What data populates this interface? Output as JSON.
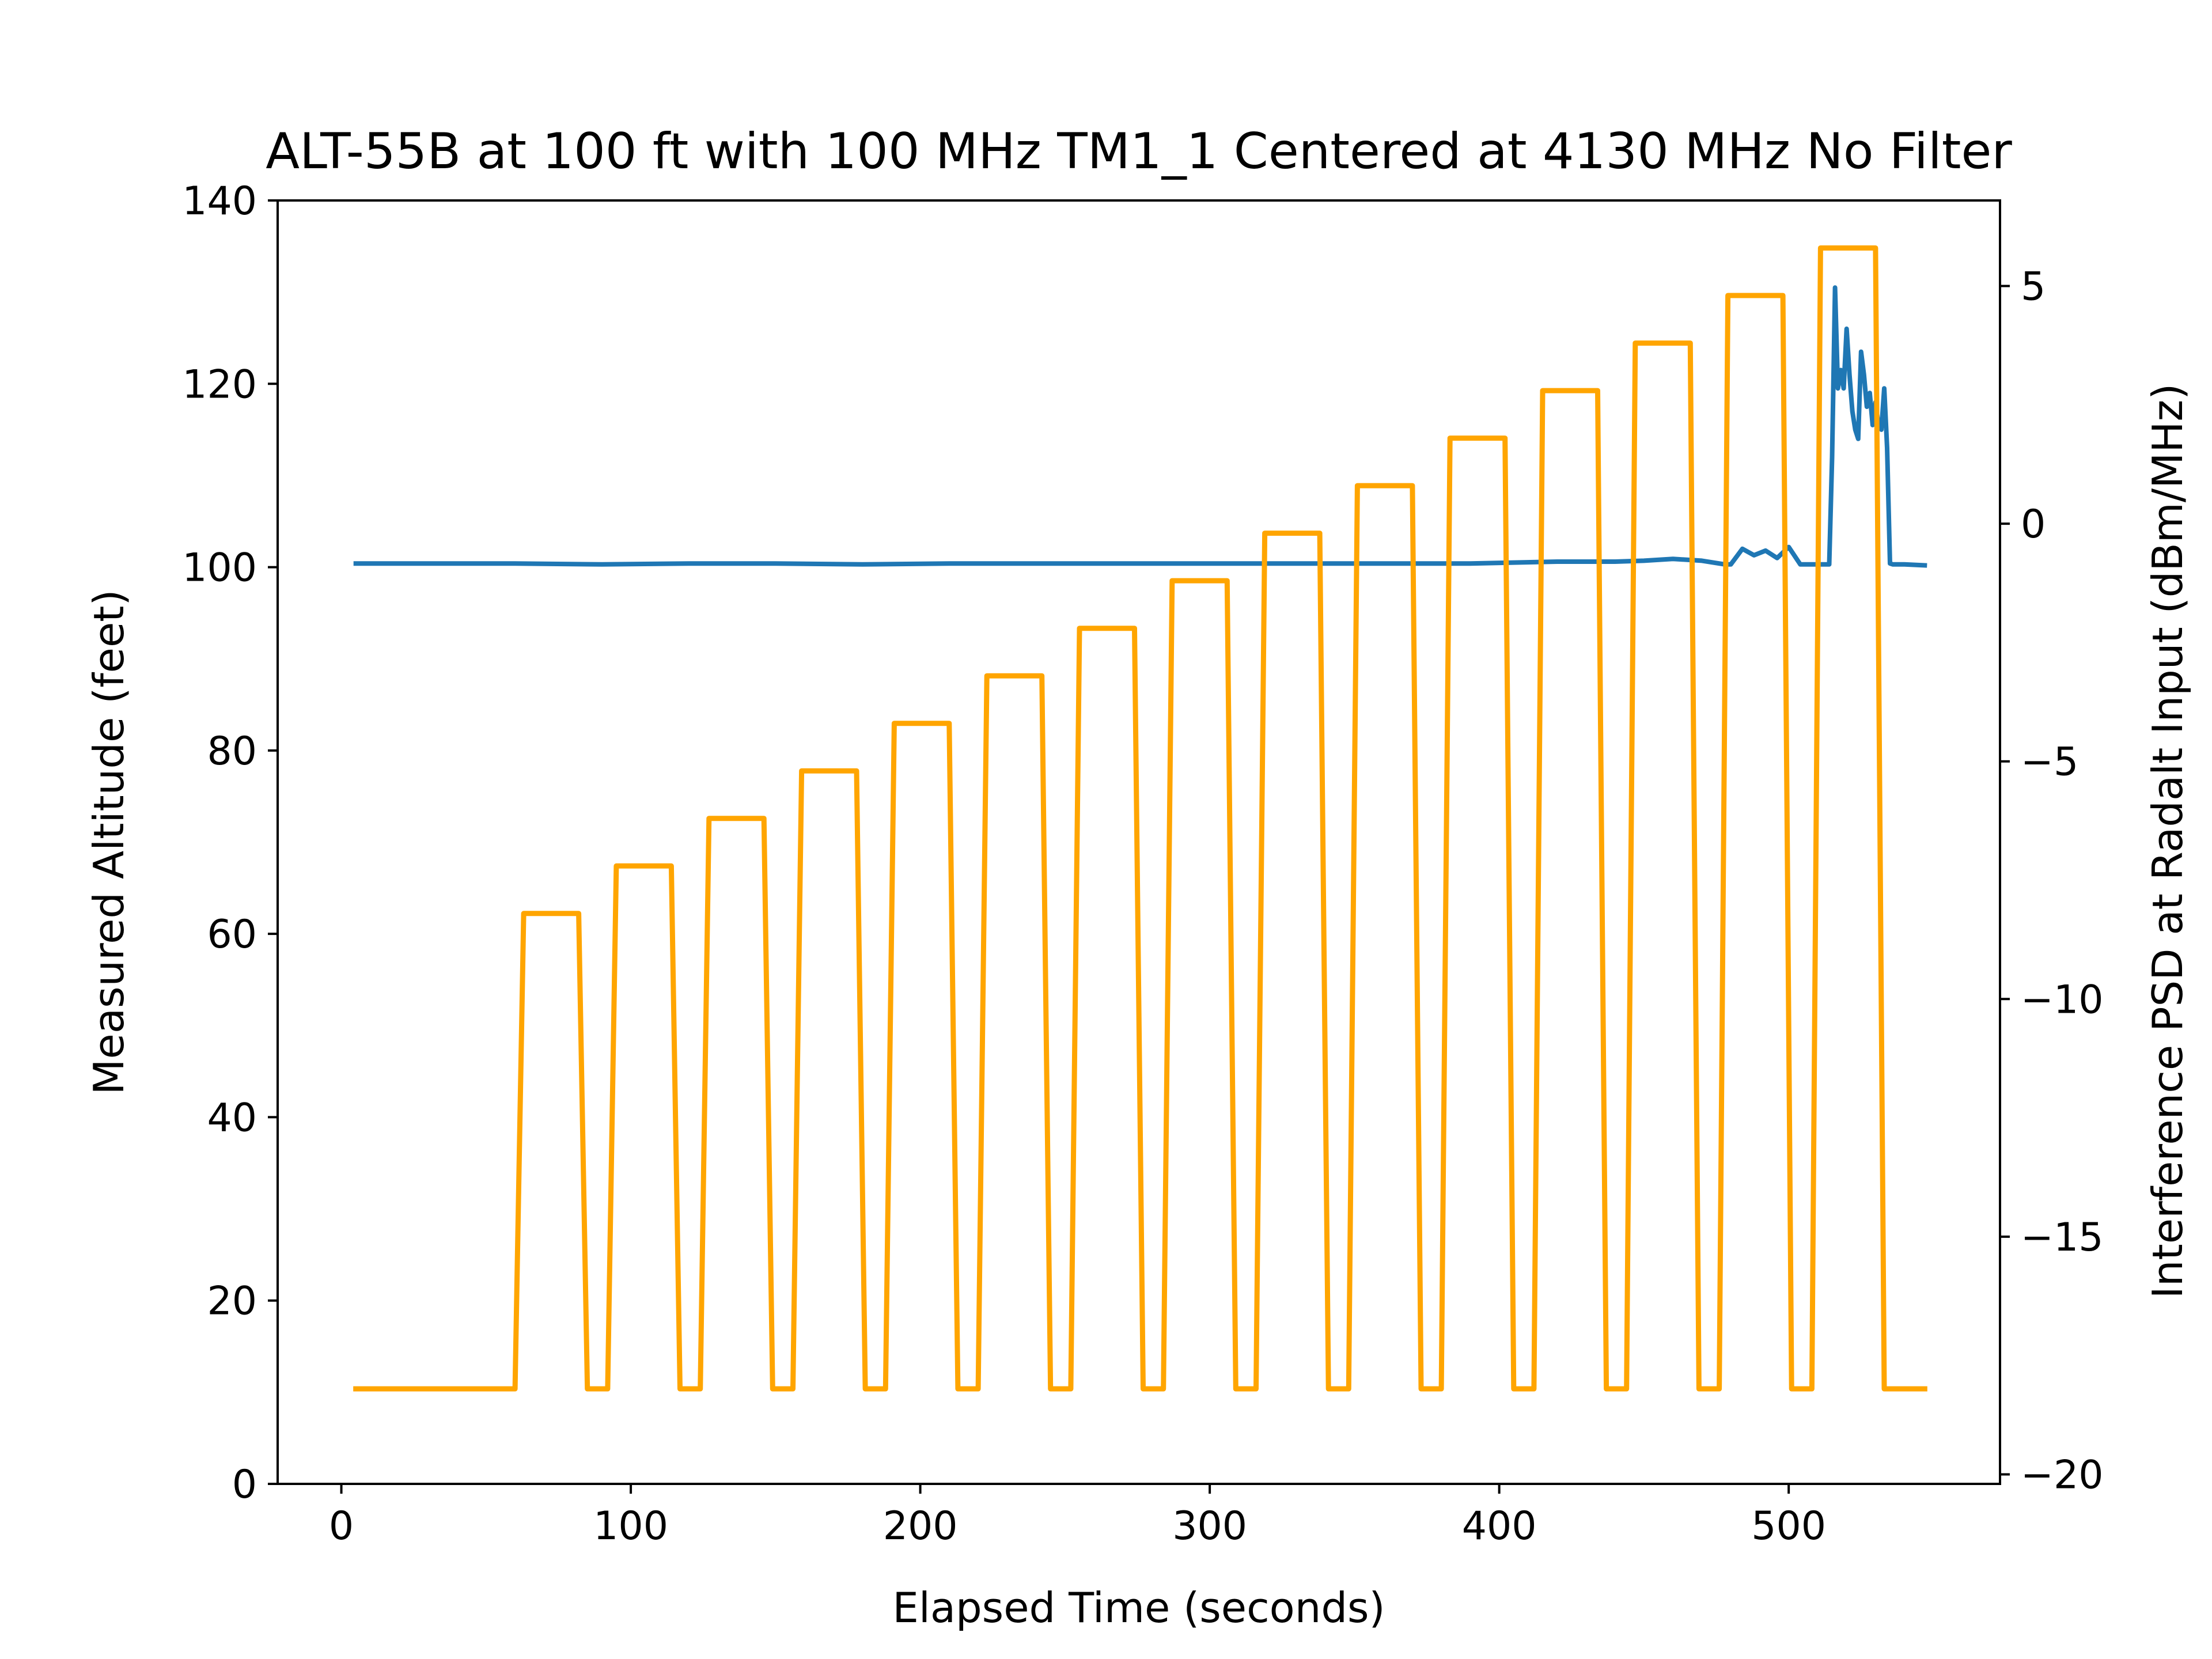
{
  "chart_data": {
    "type": "line",
    "title": "ALT-55B at 100 ft with 100 MHz TM1_1 Centered at 4130 MHz No Filter",
    "xlabel": "Elapsed Time (seconds)",
    "ylabel": "Measured Altitude (feet)",
    "y2label": "Interference PSD at Radalt Input (dBm/MHz)",
    "xlim": [
      -22,
      573
    ],
    "ylim": [
      0,
      140
    ],
    "y2lim": [
      -20.2,
      6.8
    ],
    "x_ticks": [
      0,
      100,
      200,
      300,
      400,
      500
    ],
    "x_tick_labels": [
      "0",
      "100",
      "200",
      "300",
      "400",
      "500"
    ],
    "y_ticks": [
      0,
      20,
      40,
      60,
      80,
      100,
      120,
      140
    ],
    "y_tick_labels": [
      "0",
      "20",
      "40",
      "60",
      "80",
      "100",
      "120",
      "140"
    ],
    "y2_ticks": [
      -20,
      -15,
      -10,
      -5,
      0,
      5
    ],
    "y2_tick_labels": [
      "−20",
      "−15",
      "−10",
      "−5",
      "0",
      "5"
    ],
    "grid": false,
    "legend": "none",
    "colors": {
      "altitude": "#1f77b4",
      "psd": "#ffa500",
      "axes": "#000000"
    },
    "series": [
      {
        "axis": "left",
        "color": "#1f77b4",
        "x": [
          5,
          30,
          60,
          90,
          120,
          150,
          180,
          210,
          240,
          270,
          300,
          330,
          360,
          390,
          420,
          440,
          450,
          460,
          470,
          478,
          480,
          484,
          488,
          492,
          496,
          500,
          504,
          508,
          512,
          514,
          515,
          516,
          517,
          518,
          519,
          520,
          521,
          522,
          523,
          524,
          525,
          526,
          527,
          528,
          529,
          530,
          531,
          532,
          533,
          534,
          535,
          536,
          540,
          547
        ],
        "y": [
          100.4,
          100.4,
          100.4,
          100.3,
          100.4,
          100.4,
          100.3,
          100.4,
          100.4,
          100.4,
          100.4,
          100.4,
          100.4,
          100.4,
          100.6,
          100.6,
          100.7,
          100.9,
          100.7,
          100.3,
          100.3,
          102.0,
          101.3,
          101.8,
          101.0,
          102.2,
          100.3,
          100.3,
          100.3,
          100.3,
          112.0,
          130.5,
          119.5,
          121.5,
          119.5,
          126.0,
          121.0,
          117.0,
          115.0,
          114.0,
          123.5,
          121.0,
          117.5,
          119.0,
          115.5,
          118.0,
          115.5,
          115.0,
          119.5,
          113.0,
          100.4,
          100.3,
          100.3,
          100.2
        ]
      },
      {
        "axis": "right",
        "color": "#ffa500",
        "x": [
          5,
          60,
          63,
          82,
          85,
          92,
          95,
          114,
          117,
          124,
          127,
          146,
          149,
          156,
          159,
          178,
          181,
          188,
          191,
          210,
          213,
          220,
          223,
          242,
          245,
          252,
          255,
          274,
          277,
          284,
          287,
          306,
          309,
          316,
          319,
          338,
          341,
          348,
          351,
          370,
          373,
          380,
          383,
          402,
          405,
          412,
          415,
          434,
          437,
          444,
          447,
          466,
          469,
          476,
          479,
          498,
          501,
          508,
          511,
          530,
          533,
          547
        ],
        "y": [
          -18.2,
          -18.2,
          -8.2,
          -8.2,
          -18.2,
          -18.2,
          -7.2,
          -7.2,
          -18.2,
          -18.2,
          -6.2,
          -6.2,
          -18.2,
          -18.2,
          -5.2,
          -5.2,
          -18.2,
          -18.2,
          -4.2,
          -4.2,
          -18.2,
          -18.2,
          -3.2,
          -3.2,
          -18.2,
          -18.2,
          -2.2,
          -2.2,
          -18.2,
          -18.2,
          -1.2,
          -1.2,
          -18.2,
          -18.2,
          -0.2,
          -0.2,
          -18.2,
          -18.2,
          0.8,
          0.8,
          -18.2,
          -18.2,
          1.8,
          1.8,
          -18.2,
          -18.2,
          2.8,
          2.8,
          -18.2,
          -18.2,
          3.8,
          3.8,
          -18.2,
          -18.2,
          4.8,
          4.8,
          -18.2,
          -18.2,
          5.8,
          5.8,
          -18.2,
          -18.2
        ]
      }
    ]
  }
}
